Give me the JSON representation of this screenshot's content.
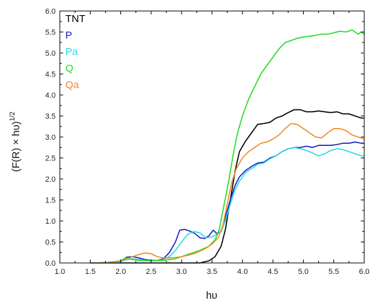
{
  "chart_data": {
    "type": "line",
    "xlabel": "hυ",
    "ylabel": "(F(R) × hυ)",
    "ylabel_superscript": "1/2",
    "xlim": [
      1.0,
      6.0
    ],
    "ylim": [
      0.0,
      6.0
    ],
    "x_ticks": [
      "1.0",
      "1.5",
      "2.0",
      "2.5",
      "3.0",
      "3.5",
      "4.0",
      "4.5",
      "5.0",
      "5.5",
      "6.0"
    ],
    "y_ticks": [
      "0.0",
      "0.5",
      "1.0",
      "1.5",
      "2.0",
      "2.5",
      "3.0",
      "3.5",
      "4.0",
      "4.5",
      "5.0",
      "5.5",
      "6.0"
    ],
    "legend_position": "top-left",
    "series": [
      {
        "name": "TNT",
        "color": "#000000",
        "points": [
          [
            1.5,
            0.0
          ],
          [
            2.0,
            0.0
          ],
          [
            2.5,
            0.0
          ],
          [
            3.0,
            0.0
          ],
          [
            3.3,
            0.0
          ],
          [
            3.45,
            0.05
          ],
          [
            3.55,
            0.15
          ],
          [
            3.65,
            0.4
          ],
          [
            3.72,
            0.8
          ],
          [
            3.8,
            1.5
          ],
          [
            3.88,
            2.2
          ],
          [
            3.95,
            2.65
          ],
          [
            4.05,
            2.9
          ],
          [
            4.15,
            3.1
          ],
          [
            4.25,
            3.3
          ],
          [
            4.35,
            3.32
          ],
          [
            4.45,
            3.35
          ],
          [
            4.55,
            3.45
          ],
          [
            4.65,
            3.5
          ],
          [
            4.75,
            3.58
          ],
          [
            4.85,
            3.65
          ],
          [
            4.95,
            3.65
          ],
          [
            5.05,
            3.6
          ],
          [
            5.15,
            3.6
          ],
          [
            5.25,
            3.62
          ],
          [
            5.35,
            3.6
          ],
          [
            5.45,
            3.58
          ],
          [
            5.55,
            3.6
          ],
          [
            5.65,
            3.55
          ],
          [
            5.75,
            3.55
          ],
          [
            5.85,
            3.5
          ],
          [
            5.95,
            3.45
          ],
          [
            6.0,
            3.45
          ]
        ]
      },
      {
        "name": "P",
        "color": "#1c1cc8",
        "points": [
          [
            1.5,
            0.0
          ],
          [
            1.8,
            0.01
          ],
          [
            2.0,
            0.05
          ],
          [
            2.1,
            0.14
          ],
          [
            2.2,
            0.15
          ],
          [
            2.3,
            0.12
          ],
          [
            2.4,
            0.08
          ],
          [
            2.5,
            0.06
          ],
          [
            2.6,
            0.06
          ],
          [
            2.7,
            0.1
          ],
          [
            2.8,
            0.25
          ],
          [
            2.9,
            0.5
          ],
          [
            2.97,
            0.78
          ],
          [
            3.05,
            0.8
          ],
          [
            3.15,
            0.75
          ],
          [
            3.22,
            0.7
          ],
          [
            3.3,
            0.6
          ],
          [
            3.38,
            0.58
          ],
          [
            3.45,
            0.65
          ],
          [
            3.52,
            0.78
          ],
          [
            3.58,
            0.7
          ],
          [
            3.65,
            0.75
          ],
          [
            3.72,
            1.1
          ],
          [
            3.8,
            1.5
          ],
          [
            3.88,
            1.85
          ],
          [
            3.95,
            2.05
          ],
          [
            4.05,
            2.2
          ],
          [
            4.15,
            2.3
          ],
          [
            4.25,
            2.38
          ],
          [
            4.35,
            2.4
          ],
          [
            4.45,
            2.5
          ],
          [
            4.55,
            2.55
          ],
          [
            4.65,
            2.65
          ],
          [
            4.75,
            2.72
          ],
          [
            4.85,
            2.75
          ],
          [
            4.95,
            2.75
          ],
          [
            5.05,
            2.78
          ],
          [
            5.15,
            2.75
          ],
          [
            5.25,
            2.8
          ],
          [
            5.35,
            2.8
          ],
          [
            5.45,
            2.8
          ],
          [
            5.55,
            2.82
          ],
          [
            5.65,
            2.85
          ],
          [
            5.75,
            2.85
          ],
          [
            5.85,
            2.88
          ],
          [
            5.95,
            2.85
          ],
          [
            6.0,
            2.85
          ]
        ]
      },
      {
        "name": "Pa",
        "color": "#22dcea",
        "points": [
          [
            1.5,
            0.0
          ],
          [
            1.8,
            0.0
          ],
          [
            2.0,
            0.03
          ],
          [
            2.1,
            0.08
          ],
          [
            2.2,
            0.1
          ],
          [
            2.3,
            0.08
          ],
          [
            2.4,
            0.06
          ],
          [
            2.5,
            0.05
          ],
          [
            2.6,
            0.06
          ],
          [
            2.7,
            0.08
          ],
          [
            2.8,
            0.15
          ],
          [
            2.9,
            0.3
          ],
          [
            3.0,
            0.5
          ],
          [
            3.1,
            0.68
          ],
          [
            3.2,
            0.75
          ],
          [
            3.3,
            0.72
          ],
          [
            3.4,
            0.6
          ],
          [
            3.5,
            0.62
          ],
          [
            3.58,
            0.68
          ],
          [
            3.65,
            0.75
          ],
          [
            3.72,
            1.0
          ],
          [
            3.8,
            1.4
          ],
          [
            3.88,
            1.75
          ],
          [
            3.95,
            1.95
          ],
          [
            4.05,
            2.15
          ],
          [
            4.15,
            2.25
          ],
          [
            4.25,
            2.35
          ],
          [
            4.35,
            2.38
          ],
          [
            4.45,
            2.48
          ],
          [
            4.55,
            2.55
          ],
          [
            4.65,
            2.65
          ],
          [
            4.75,
            2.72
          ],
          [
            4.85,
            2.75
          ],
          [
            4.95,
            2.72
          ],
          [
            5.05,
            2.68
          ],
          [
            5.15,
            2.62
          ],
          [
            5.25,
            2.55
          ],
          [
            5.35,
            2.6
          ],
          [
            5.45,
            2.68
          ],
          [
            5.55,
            2.72
          ],
          [
            5.65,
            2.7
          ],
          [
            5.75,
            2.65
          ],
          [
            5.85,
            2.6
          ],
          [
            5.95,
            2.55
          ],
          [
            6.0,
            2.55
          ]
        ]
      },
      {
        "name": "Q",
        "color": "#22dd22",
        "points": [
          [
            1.5,
            0.0
          ],
          [
            1.8,
            0.0
          ],
          [
            2.0,
            0.05
          ],
          [
            2.05,
            0.1
          ],
          [
            2.1,
            0.12
          ],
          [
            2.2,
            0.08
          ],
          [
            2.3,
            0.06
          ],
          [
            2.4,
            0.06
          ],
          [
            2.5,
            0.05
          ],
          [
            2.7,
            0.06
          ],
          [
            2.9,
            0.1
          ],
          [
            3.1,
            0.2
          ],
          [
            3.3,
            0.3
          ],
          [
            3.45,
            0.4
          ],
          [
            3.55,
            0.55
          ],
          [
            3.62,
            0.8
          ],
          [
            3.7,
            1.4
          ],
          [
            3.78,
            2.0
          ],
          [
            3.85,
            2.6
          ],
          [
            3.92,
            3.1
          ],
          [
            4.0,
            3.5
          ],
          [
            4.1,
            3.9
          ],
          [
            4.2,
            4.2
          ],
          [
            4.3,
            4.5
          ],
          [
            4.4,
            4.7
          ],
          [
            4.5,
            4.9
          ],
          [
            4.6,
            5.1
          ],
          [
            4.7,
            5.25
          ],
          [
            4.8,
            5.3
          ],
          [
            4.9,
            5.35
          ],
          [
            5.0,
            5.38
          ],
          [
            5.1,
            5.4
          ],
          [
            5.2,
            5.42
          ],
          [
            5.3,
            5.45
          ],
          [
            5.4,
            5.45
          ],
          [
            5.5,
            5.48
          ],
          [
            5.6,
            5.52
          ],
          [
            5.7,
            5.5
          ],
          [
            5.8,
            5.55
          ],
          [
            5.9,
            5.45
          ],
          [
            5.95,
            5.5
          ],
          [
            6.0,
            5.45
          ]
        ]
      },
      {
        "name": "Qa",
        "color": "#f08a24",
        "points": [
          [
            1.5,
            0.0
          ],
          [
            1.8,
            0.0
          ],
          [
            2.0,
            0.05
          ],
          [
            2.1,
            0.1
          ],
          [
            2.2,
            0.15
          ],
          [
            2.3,
            0.2
          ],
          [
            2.4,
            0.24
          ],
          [
            2.5,
            0.22
          ],
          [
            2.6,
            0.15
          ],
          [
            2.7,
            0.12
          ],
          [
            2.8,
            0.12
          ],
          [
            2.9,
            0.13
          ],
          [
            3.0,
            0.15
          ],
          [
            3.1,
            0.18
          ],
          [
            3.2,
            0.22
          ],
          [
            3.3,
            0.28
          ],
          [
            3.4,
            0.35
          ],
          [
            3.5,
            0.45
          ],
          [
            3.6,
            0.6
          ],
          [
            3.68,
            0.9
          ],
          [
            3.75,
            1.4
          ],
          [
            3.82,
            1.9
          ],
          [
            3.9,
            2.25
          ],
          [
            4.0,
            2.5
          ],
          [
            4.1,
            2.65
          ],
          [
            4.2,
            2.75
          ],
          [
            4.3,
            2.85
          ],
          [
            4.4,
            2.88
          ],
          [
            4.5,
            2.95
          ],
          [
            4.6,
            3.05
          ],
          [
            4.7,
            3.2
          ],
          [
            4.8,
            3.32
          ],
          [
            4.9,
            3.3
          ],
          [
            5.0,
            3.2
          ],
          [
            5.1,
            3.1
          ],
          [
            5.2,
            3.0
          ],
          [
            5.3,
            2.98
          ],
          [
            5.4,
            3.1
          ],
          [
            5.5,
            3.2
          ],
          [
            5.6,
            3.2
          ],
          [
            5.7,
            3.15
          ],
          [
            5.8,
            3.05
          ],
          [
            5.9,
            3.0
          ],
          [
            6.0,
            2.95
          ]
        ]
      }
    ]
  }
}
